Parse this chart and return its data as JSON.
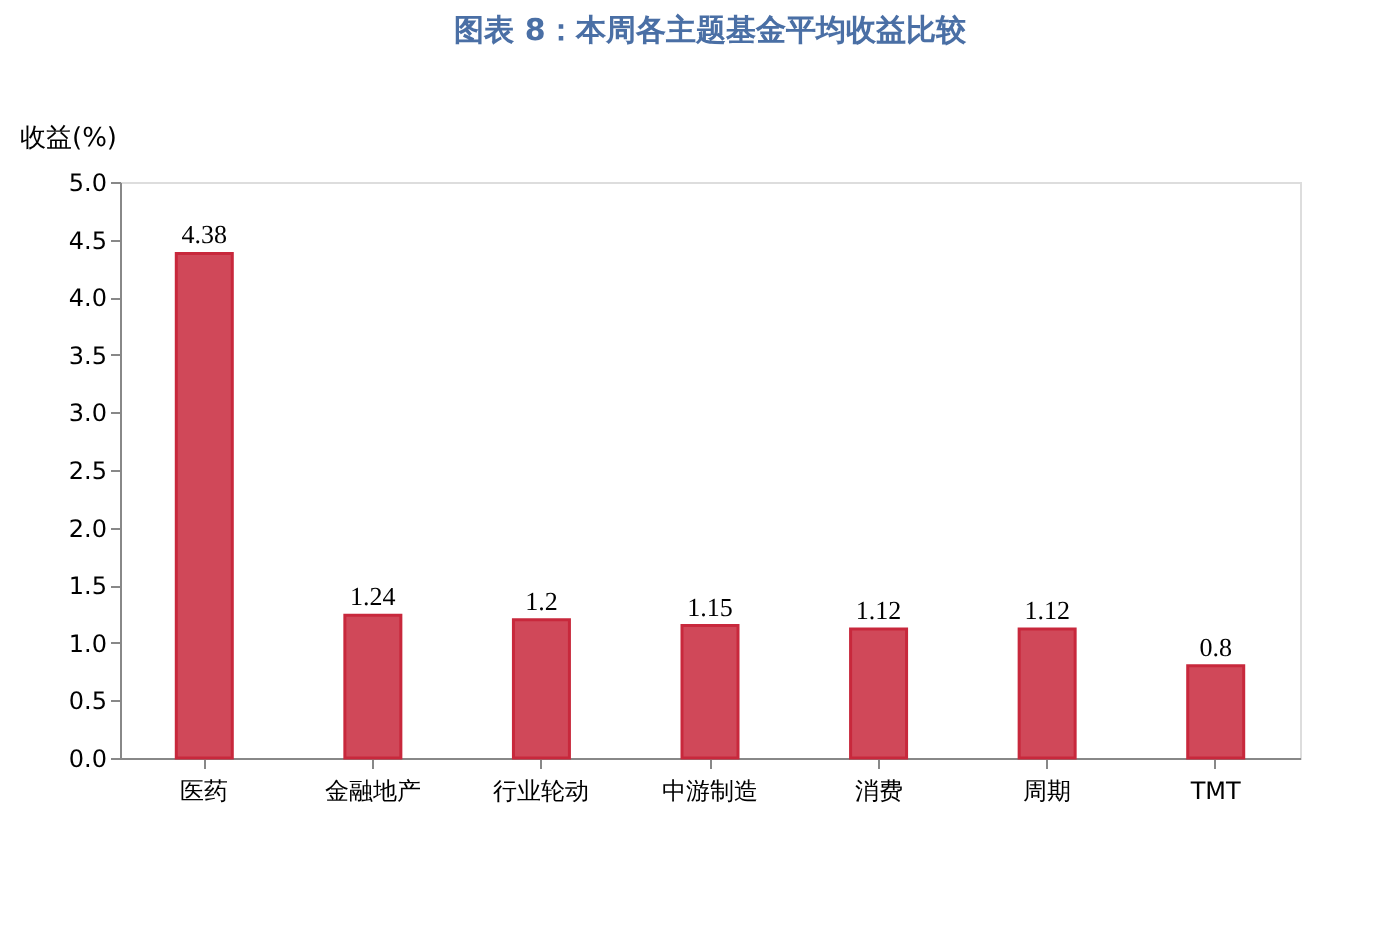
{
  "chart_data": {
    "type": "bar",
    "title": "图表 8：本周各主题基金平均收益比较",
    "ylabel": "收益(%)",
    "categories": [
      "医药",
      "金融地产",
      "行业轮动",
      "中游制造",
      "消费",
      "周期",
      "TMT"
    ],
    "values": [
      4.38,
      1.24,
      1.2,
      1.15,
      1.12,
      1.12,
      0.8
    ],
    "color": "#c8283c",
    "ylim": [
      0,
      5
    ],
    "yticks": [
      {
        "value": 0,
        "label": "0.0"
      },
      0.5,
      {
        "value": 1,
        "label": "1.0"
      },
      1.5,
      {
        "value": 2,
        "label": "2.0"
      },
      2.5,
      {
        "value": 3,
        "label": "3.0"
      },
      3.5,
      {
        "value": 4,
        "label": "4.0"
      },
      4.5,
      {
        "value": 5,
        "label": "5.0"
      }
    ],
    "data_labels": true,
    "grid": false
  }
}
